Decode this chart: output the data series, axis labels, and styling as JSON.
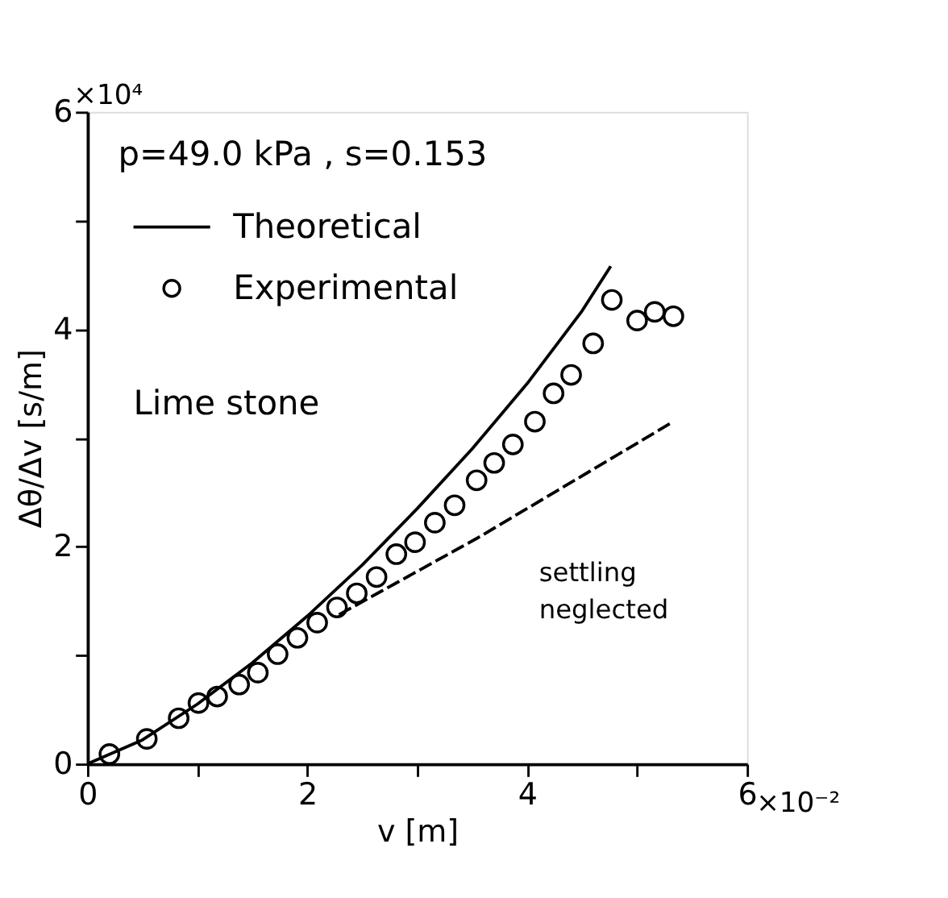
{
  "chart_data": {
    "type": "scatter",
    "xlabel": "v [m]",
    "ylabel": "Δθ/Δv [s/m]",
    "xlim": [
      0,
      6
    ],
    "ylim": [
      0,
      6
    ],
    "xticks": [
      0,
      {
        "value": 1,
        "label": null
      },
      2,
      {
        "value": 3,
        "label": null
      },
      4,
      {
        "value": 5,
        "label": null
      },
      6
    ],
    "yticks": [
      0,
      {
        "value": 1,
        "label": null
      },
      2,
      {
        "value": 3,
        "label": null
      },
      4,
      {
        "value": 5,
        "label": null
      },
      6
    ],
    "grid": false,
    "legend": "top left",
    "series": [
      {
        "name": "Theoretical",
        "type": "line",
        "color": "#000000",
        "line_style": "solid",
        "marker": "none",
        "x": [
          0,
          0.5,
          1,
          1.5,
          2,
          2.5,
          3,
          3.5,
          4,
          4.5,
          4.76
        ],
        "values": [
          0,
          0.22,
          0.55,
          0.93,
          1.36,
          1.83,
          2.35,
          2.9,
          3.5,
          4.17,
          4.58
        ]
      },
      {
        "name": "Experimental",
        "color": "#000000",
        "marker": "circle",
        "x": [
          0.2,
          0.54,
          0.83,
          1.01,
          1.18,
          1.38,
          1.55,
          1.73,
          1.91,
          2.09,
          2.27,
          2.45,
          2.63,
          2.81,
          2.98,
          3.16,
          3.34,
          3.54,
          3.7,
          3.87,
          4.07,
          4.24,
          4.4,
          4.6,
          4.77,
          5.0,
          5.16,
          5.33
        ],
        "values": [
          0.09,
          0.23,
          0.42,
          0.56,
          0.62,
          0.73,
          0.84,
          1.01,
          1.16,
          1.3,
          1.44,
          1.57,
          1.72,
          1.93,
          2.04,
          2.22,
          2.38,
          2.61,
          2.77,
          2.94,
          3.15,
          3.41,
          3.58,
          3.87,
          4.27,
          4.08,
          4.16,
          4.12
        ]
      },
      {
        "type": "line",
        "color": "#000000",
        "line_style": "dashed",
        "marker": "none",
        "x": [
          2.3,
          3.55,
          5.33
        ],
        "values": [
          1.38,
          2.08,
          3.15
        ]
      }
    ],
    "annotations": [
      "p=49.0 kPa , s=0.153",
      "Lime stone",
      "×10⁴",
      "×10⁻²",
      {
        "text": "settling neglected",
        "x": 3.55,
        "y": 2.06
      }
    ]
  }
}
